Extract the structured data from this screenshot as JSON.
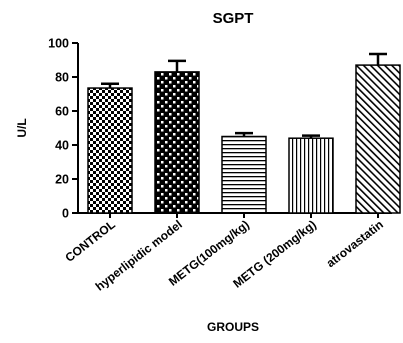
{
  "chart_data": {
    "type": "bar",
    "title": "SGPT",
    "xlabel": "GROUPS",
    "ylabel": "U/L",
    "ylim": [
      0,
      100
    ],
    "yticks": [
      0,
      20,
      40,
      60,
      80,
      100
    ],
    "grid": false,
    "categories": [
      "CONTROL",
      "hyperlipidic model",
      "METG(100mg/kg)",
      "METG (200mg/kg)",
      "atrovastatin"
    ],
    "values": [
      73.5,
      83,
      45,
      44,
      87
    ],
    "errors": [
      2.5,
      6.5,
      2,
      1.5,
      6.5
    ],
    "patterns": [
      "checker-dense",
      "checker-coarse",
      "horizontal-lines",
      "vertical-lines",
      "diagonal-lines"
    ],
    "colors": {
      "ink": "#000000",
      "background": "#ffffff"
    }
  }
}
